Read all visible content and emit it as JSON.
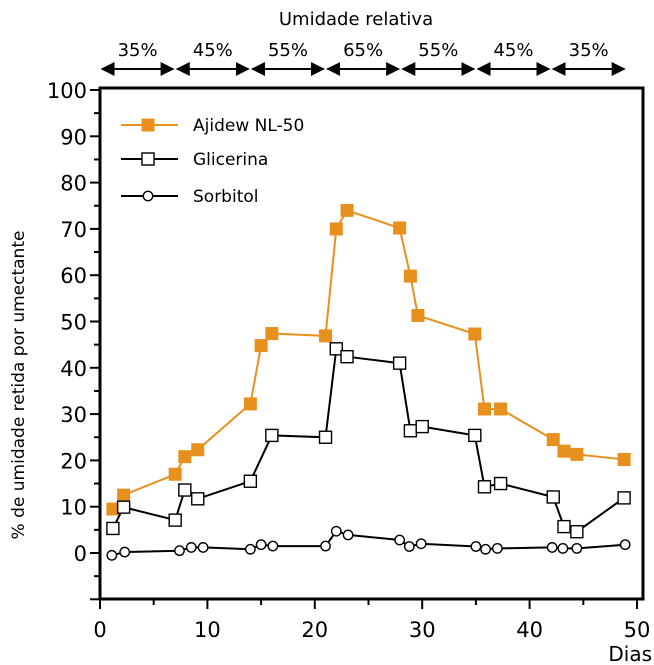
{
  "chart_data": {
    "type": "line",
    "title": "",
    "xlabel": "Dias",
    "ylabel": "% de umidade retida por umectante",
    "xlim": [
      0,
      50
    ],
    "ylim": [
      -10,
      100
    ],
    "x_ticks": [
      0,
      10,
      20,
      30,
      40,
      50
    ],
    "y_ticks": [
      0,
      10,
      20,
      30,
      40,
      50,
      60,
      70,
      80,
      90,
      100
    ],
    "grid": false,
    "legend_position": "top-left",
    "humidity_bands": {
      "title": "Umidade relativa",
      "bands": [
        {
          "label": "35%",
          "from": 0,
          "to": 7
        },
        {
          "label": "45%",
          "from": 7,
          "to": 14
        },
        {
          "label": "55%",
          "from": 14,
          "to": 21
        },
        {
          "label": "65%",
          "from": 21,
          "to": 28
        },
        {
          "label": "55%",
          "from": 28,
          "to": 35
        },
        {
          "label": "45%",
          "from": 35,
          "to": 42
        },
        {
          "label": "35%",
          "from": 42,
          "to": 49
        }
      ]
    },
    "series": [
      {
        "name": "Ajidew NL-50",
        "color": "#E8901E",
        "marker": "filled-square",
        "points": [
          [
            1.2,
            9.5
          ],
          [
            2.2,
            12.5
          ],
          [
            7,
            17
          ],
          [
            7.9,
            20.8
          ],
          [
            9.1,
            22.3
          ],
          [
            14,
            32.2
          ],
          [
            15,
            44.8
          ],
          [
            16,
            47.4
          ],
          [
            21,
            46.9
          ],
          [
            22,
            70
          ],
          [
            23,
            74
          ],
          [
            27.9,
            70.2
          ],
          [
            28.9,
            59.8
          ],
          [
            29.6,
            51.3
          ],
          [
            34.9,
            47.3
          ],
          [
            35.8,
            31.1
          ],
          [
            37.3,
            31.1
          ],
          [
            42.2,
            24.5
          ],
          [
            43.2,
            22
          ],
          [
            44.4,
            21.3
          ],
          [
            48.8,
            20.2
          ]
        ]
      },
      {
        "name": "Glicerina",
        "color": "#000000",
        "marker": "open-square",
        "points": [
          [
            1.2,
            5.3
          ],
          [
            2.2,
            9.9
          ],
          [
            7,
            7.1
          ],
          [
            7.9,
            13.6
          ],
          [
            9.1,
            11.7
          ],
          [
            14,
            15.5
          ],
          [
            16,
            25.4
          ],
          [
            21,
            25
          ],
          [
            22,
            44.1
          ],
          [
            23,
            42.4
          ],
          [
            27.9,
            41
          ],
          [
            28.9,
            26.4
          ],
          [
            30,
            27.3
          ],
          [
            34.9,
            25.4
          ],
          [
            35.8,
            14.3
          ],
          [
            37.3,
            15
          ],
          [
            42.2,
            12.1
          ],
          [
            43.2,
            5.7
          ],
          [
            44.4,
            4.6
          ],
          [
            48.8,
            11.9
          ]
        ]
      },
      {
        "name": "Sorbitol",
        "color": "#000000",
        "marker": "open-circle",
        "points": [
          [
            1.1,
            -0.5
          ],
          [
            2.3,
            0.2
          ],
          [
            7.4,
            0.5
          ],
          [
            8.5,
            1.2
          ],
          [
            9.6,
            1.2
          ],
          [
            14,
            0.8
          ],
          [
            15,
            1.8
          ],
          [
            16.1,
            1.5
          ],
          [
            21,
            1.5
          ],
          [
            22,
            4.7
          ],
          [
            23.1,
            3.9
          ],
          [
            27.9,
            2.8
          ],
          [
            28.8,
            1.4
          ],
          [
            29.9,
            2
          ],
          [
            35,
            1.4
          ],
          [
            35.9,
            0.8
          ],
          [
            37,
            1
          ],
          [
            42.1,
            1.2
          ],
          [
            43.1,
            1
          ],
          [
            44.4,
            1
          ],
          [
            48.9,
            1.8
          ]
        ]
      }
    ]
  }
}
